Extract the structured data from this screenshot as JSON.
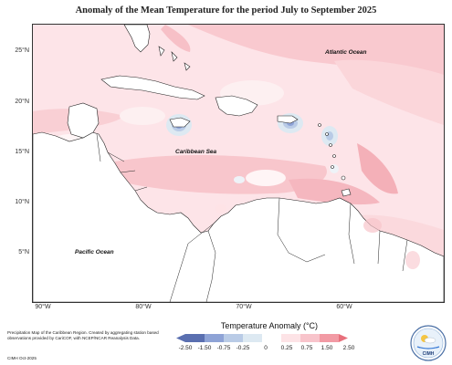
{
  "title": "Anomaly of the Mean Temperature for the period July to September 2025",
  "axes": {
    "lat_ticks": [
      "25°N",
      "20°N",
      "15°N",
      "10°N",
      "5°N"
    ],
    "lon_ticks": [
      "90°W",
      "80°W",
      "70°W",
      "60°W"
    ]
  },
  "ocean_labels": {
    "atlantic": "Atlantic Ocean",
    "caribbean": "Caribbean Sea",
    "pacific": "Pacific Ocean"
  },
  "legend": {
    "title": "Temperature Anomaly (°C)",
    "ticks": [
      "-2.50",
      "-1.50",
      "-0.75",
      "-0.25",
      "0",
      "0.25",
      "0.75",
      "1.50",
      "2.50"
    ],
    "colors": [
      "#5a6fb0",
      "#8ea3d6",
      "#b9cbe6",
      "#dde9f2",
      "#ffffff",
      "#fde3e6",
      "#f8c4cb",
      "#f29aa4",
      "#e8707c"
    ]
  },
  "footnote": "Precipitation Map of the Caribbean Region. Created by aggregating station based observations provided by CariCOF, with NCEP/NCAR Reanalysis Data.",
  "credit": "CIMH Oct-2025",
  "logo": {
    "text": "CIMH"
  }
}
